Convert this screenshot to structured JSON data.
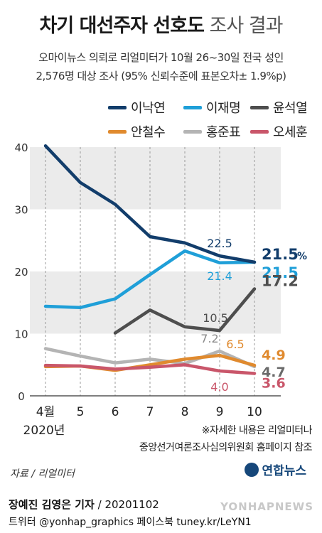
{
  "header": {
    "title_bold": "차기 대선주자 선호도",
    "title_light": "조사 결과",
    "subtitle_line1": "오마이뉴스 의뢰로 리얼미터가 10월 26~30일 전국 성인",
    "subtitle_line2": "2,576명 대상 조사 (95% 신뢰수준에 표본오차± 1.9%p)"
  },
  "footnote": {
    "line1": "※자세한 내용은 리얼미터나",
    "line2": "중앙선거여론조사심의위원회 홈페이지 참조"
  },
  "source": "자료 / 리얼미터",
  "logo": "연합뉴스",
  "credit": {
    "reporters": "장예진 김영은 기자",
    "sep": " / ",
    "date": "20201102"
  },
  "twitter": "트위터 @yonhap_graphics  페이스북 tuney.kr/LeYN1",
  "watermark": "YONHAPNEWS",
  "chart_data": {
    "type": "line",
    "categories": [
      "4월",
      "5",
      "6",
      "7",
      "8",
      "9",
      "10"
    ],
    "x_sublabel": "2020년",
    "ylim": [
      0,
      40
    ],
    "yticks": [
      0,
      10,
      20,
      30,
      40
    ],
    "grid": "alternating horizontal bands",
    "legend_position": "top",
    "series": [
      {
        "name": "이낙연",
        "color": "#123d6b",
        "values": [
          40.2,
          34.3,
          30.8,
          25.6,
          24.6,
          22.5,
          21.5
        ]
      },
      {
        "name": "이재명",
        "color": "#1f9fd8",
        "values": [
          14.4,
          14.2,
          15.6,
          19.5,
          23.3,
          21.4,
          21.5
        ]
      },
      {
        "name": "윤석열",
        "color": "#4e4e4e",
        "values": [
          null,
          null,
          10.1,
          13.8,
          11.1,
          10.5,
          17.2
        ]
      },
      {
        "name": "안철수",
        "color": "#e08a2e",
        "values": [
          4.7,
          4.8,
          4.1,
          5.0,
          5.9,
          6.5,
          4.9
        ]
      },
      {
        "name": "홍준표",
        "color": "#b4b4b4",
        "values": [
          7.6,
          6.4,
          5.3,
          5.9,
          5.2,
          7.2,
          4.7
        ]
      },
      {
        "name": "오세훈",
        "color": "#c9566a",
        "values": [
          4.9,
          4.8,
          4.3,
          4.6,
          5.0,
          4.0,
          3.6
        ]
      }
    ],
    "labels": [
      {
        "series": 0,
        "index": 5,
        "text": "22.5",
        "color": "#123d6b",
        "size": 16,
        "bold": false,
        "dx": 0,
        "dy": -12
      },
      {
        "series": 0,
        "index": 6,
        "text": "21.5",
        "color": "#123d6b",
        "size": 21,
        "bold": true,
        "dx": 10,
        "dy": -4,
        "anchor": "start"
      },
      {
        "series": 0,
        "index": 6,
        "text": "%",
        "color": "#123d6b",
        "size": 14,
        "bold": true,
        "dx": 60,
        "dy": -4,
        "anchor": "start"
      },
      {
        "series": 1,
        "index": 5,
        "text": "21.4",
        "color": "#1f9fd8",
        "size": 16,
        "bold": false,
        "dx": 0,
        "dy": 24
      },
      {
        "series": 1,
        "index": 6,
        "text": "21.5",
        "color": "#1f9fd8",
        "size": 21,
        "bold": true,
        "dx": 10,
        "dy": 22,
        "anchor": "start"
      },
      {
        "series": 2,
        "index": 5,
        "text": "10.5",
        "color": "#4e4e4e",
        "size": 16,
        "bold": false,
        "dx": -6,
        "dy": -12
      },
      {
        "series": 2,
        "index": 6,
        "text": "17.2",
        "color": "#4e4e4e",
        "size": 21,
        "bold": true,
        "dx": 10,
        "dy": -4,
        "anchor": "start"
      },
      {
        "series": 4,
        "index": 5,
        "text": "7.2",
        "color": "#8a8a8a",
        "size": 16,
        "bold": false,
        "dx": -14,
        "dy": -12
      },
      {
        "series": 3,
        "index": 5,
        "text": "6.5",
        "color": "#e08a2e",
        "size": 16,
        "bold": false,
        "dx": 22,
        "dy": -10
      },
      {
        "series": 3,
        "index": 6,
        "text": "4.9",
        "color": "#e08a2e",
        "size": 19,
        "bold": true,
        "dx": 10,
        "dy": -8,
        "anchor": "start"
      },
      {
        "series": 4,
        "index": 6,
        "text": "4.7",
        "color": "#6a6a6a",
        "size": 19,
        "bold": true,
        "dx": 10,
        "dy": 14,
        "anchor": "start"
      },
      {
        "series": 5,
        "index": 5,
        "text": "4.0",
        "color": "#c9566a",
        "size": 16,
        "bold": false,
        "dx": 0,
        "dy": 28
      },
      {
        "series": 5,
        "index": 6,
        "text": "3.6",
        "color": "#c9566a",
        "size": 19,
        "bold": true,
        "dx": 10,
        "dy": 20,
        "anchor": "start"
      }
    ]
  }
}
